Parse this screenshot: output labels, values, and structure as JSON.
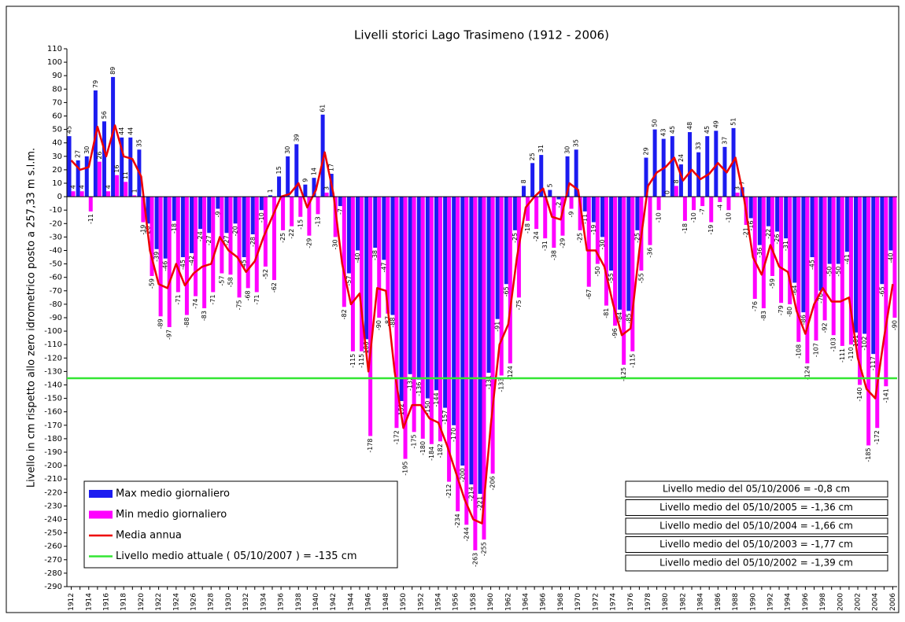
{
  "chart_data": {
    "type": "bar",
    "title": "Livelli storici Lago Trasimeno (1912 - 2006)",
    "y_label": "Livello in cm rispetto allo zero idrometrico posto a 257,33 m s.l.m.",
    "categories": [
      "1912",
      null,
      "1914",
      null,
      "1916",
      null,
      "1918",
      null,
      "1920",
      null,
      "1922",
      null,
      "1924",
      null,
      "1926",
      null,
      "1928",
      null,
      "1930",
      null,
      "1932",
      null,
      "1934",
      null,
      "1936",
      null,
      "1938",
      null,
      "1940",
      null,
      "1942",
      null,
      "1944",
      null,
      "1946",
      null,
      "1948",
      null,
      "1950",
      null,
      "1952",
      null,
      "1954",
      null,
      "1956",
      null,
      "1958",
      null,
      "1960",
      null,
      "1962",
      null,
      "1964",
      null,
      "1966",
      null,
      "1968",
      null,
      "1970",
      null,
      "1972",
      null,
      "1974",
      null,
      "1976",
      null,
      "1978",
      null,
      "1980",
      null,
      "1982",
      null,
      "1984",
      null,
      "1986",
      null,
      "1988",
      null,
      "1990",
      null,
      "1992",
      null,
      "1994",
      null,
      "1996",
      null,
      "1998",
      null,
      "2000",
      null,
      "2002",
      null,
      "2004",
      null,
      "2006"
    ],
    "series": [
      {
        "name": "Max medio giornaliero",
        "type": "bar",
        "color": "#1c1cf0",
        "values": [
          45,
          27,
          30,
          79,
          56,
          89,
          44,
          44,
          35,
          -20,
          -39,
          -46,
          -18,
          -45,
          -42,
          -24,
          -27,
          -9,
          -27,
          -20,
          -45,
          -28,
          -10,
          1,
          15,
          30,
          39,
          9,
          14,
          61,
          17,
          -7,
          -57,
          -40,
          -106,
          -38,
          -47,
          -88,
          -152,
          -132,
          -136,
          -150,
          -144,
          -157,
          -170,
          -200,
          -214,
          -221,
          -131,
          -91,
          -65,
          -25,
          8,
          25,
          31,
          5,
          -2,
          30,
          35,
          -11,
          -19,
          -30,
          -55,
          -84,
          -85,
          -25,
          29,
          50,
          43,
          45,
          24,
          48,
          33,
          45,
          49,
          37,
          51,
          7,
          -16,
          -36,
          -22,
          -26,
          -31,
          -64,
          -86,
          -45,
          -70,
          -50,
          -50,
          -41,
          -101,
          -102,
          -117,
          -65,
          -40
        ]
      },
      {
        "name": "Min medio giornaliero",
        "type": "bar",
        "color": "#ff00ff",
        "values": [
          4,
          4,
          -11,
          26,
          4,
          16,
          11,
          1,
          -19,
          -59,
          -89,
          -97,
          -71,
          -88,
          -74,
          -83,
          -71,
          -57,
          -58,
          -75,
          -68,
          -71,
          -52,
          -62,
          -25,
          -22,
          -15,
          -29,
          -13,
          3,
          -30,
          -82,
          -115,
          -115,
          -178,
          -90,
          -87,
          -172,
          -195,
          -175,
          -180,
          -184,
          -182,
          -212,
          -234,
          -244,
          -263,
          -255,
          -206,
          -133,
          -124,
          -75,
          -18,
          -24,
          -31,
          -38,
          -29,
          -9,
          -25,
          -67,
          -50,
          -81,
          -96,
          -125,
          -115,
          -55,
          -36,
          -10,
          0,
          8,
          -18,
          -10,
          -7,
          -19,
          -4,
          -10,
          3,
          -21,
          -76,
          -83,
          -59,
          -79,
          -80,
          -108,
          -124,
          -107,
          -92,
          -103,
          -111,
          -110,
          -140,
          -185,
          -172,
          -141,
          -90
        ]
      },
      {
        "name": "Media annua",
        "type": "line",
        "color": "#ee0000",
        "values": [
          27,
          20,
          22,
          52,
          30,
          53,
          30,
          28,
          15,
          -40,
          -65,
          -68,
          -50,
          -66,
          -57,
          -52,
          -50,
          -30,
          -40,
          -45,
          -56,
          -48,
          -30,
          -15,
          0,
          2,
          10,
          -8,
          5,
          33,
          2,
          -50,
          -80,
          -72,
          -130,
          -68,
          -70,
          -130,
          -172,
          -155,
          -155,
          -165,
          -168,
          -185,
          -205,
          -225,
          -240,
          -243,
          -170,
          -110,
          -95,
          -45,
          -8,
          0,
          6,
          -15,
          -17,
          10,
          5,
          -40,
          -40,
          -52,
          -80,
          -103,
          -98,
          -40,
          8,
          18,
          22,
          29,
          12,
          20,
          13,
          17,
          25,
          18,
          29,
          -2,
          -45,
          -58,
          -36,
          -52,
          -56,
          -85,
          -102,
          -80,
          -68,
          -78,
          -78,
          -75,
          -120,
          -143,
          -150,
          -105,
          -65
        ]
      }
    ],
    "reference_line": {
      "name": "Livello medio attuale ( 05/10/2007 ) = -135 cm",
      "value": -135,
      "color": "#33e633"
    },
    "notes": [
      "Livello medio del 05/10/2006 =  -0,8 cm",
      "Livello medio del 05/10/2005 =  -1,36 cm",
      "Livello medio del 05/10/2004 =  -1,66 cm",
      "Livello medio del 05/10/2003 = -1,77 cm",
      "Livello medio del 05/10/2002 = -1,39 cm"
    ],
    "ylim": [
      -290,
      110
    ],
    "yticks": [
      -290,
      -280,
      -270,
      -260,
      -250,
      -240,
      -230,
      -220,
      -210,
      -200,
      -190,
      -180,
      -170,
      -160,
      -150,
      -140,
      -130,
      -120,
      -110,
      -100,
      -90,
      -80,
      -70,
      -60,
      -50,
      -40,
      -30,
      -20,
      -10,
      0,
      10,
      20,
      30,
      40,
      50,
      60,
      70,
      80,
      90,
      100,
      110
    ],
    "grid": false,
    "legend_position": "lower left"
  }
}
